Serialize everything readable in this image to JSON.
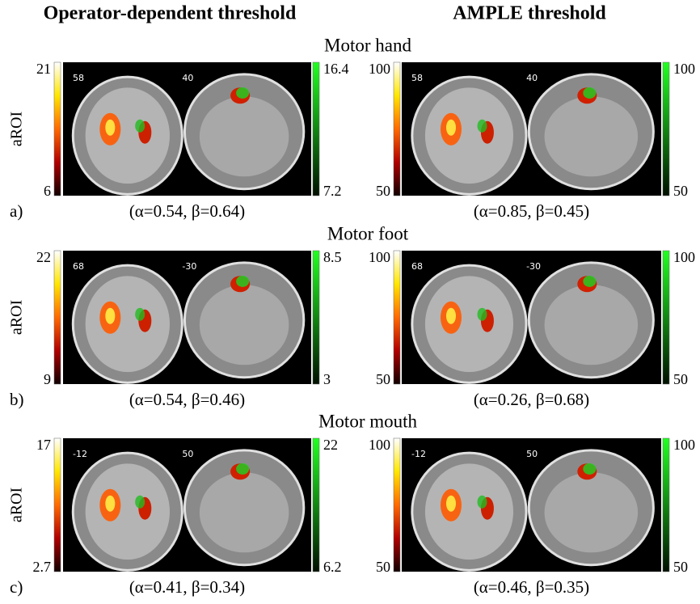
{
  "headers": [
    "Operator-dependent threshold",
    "AMPLE threshold"
  ],
  "rows": [
    {
      "title": "Motor hand",
      "letter": "a)",
      "ylabel": "aROI",
      "panels": [
        {
          "cbar_left": [
            "21",
            "6"
          ],
          "slices": [
            "58",
            "40"
          ],
          "cbar_right": [
            "16.4",
            "7.2"
          ],
          "caption": "(α=0.54, β=0.64)"
        },
        {
          "cbar_left": [
            "100",
            "50"
          ],
          "slices": [
            "58",
            "40"
          ],
          "cbar_right": [
            "100",
            "50"
          ],
          "caption": "(α=0.85, β=0.45)"
        }
      ]
    },
    {
      "title": "Motor foot",
      "letter": "b)",
      "ylabel": "aROI",
      "panels": [
        {
          "cbar_left": [
            "22",
            "9"
          ],
          "slices": [
            "68",
            "-30"
          ],
          "cbar_right": [
            "8.5",
            "3"
          ],
          "caption": "(α=0.54, β=0.46)"
        },
        {
          "cbar_left": [
            "100",
            "50"
          ],
          "slices": [
            "68",
            "-30"
          ],
          "cbar_right": [
            "100",
            "50"
          ],
          "caption": "(α=0.26, β=0.68)"
        }
      ]
    },
    {
      "title": "Motor mouth",
      "letter": "c)",
      "ylabel": "aROI",
      "panels": [
        {
          "cbar_left": [
            "17",
            "2.7"
          ],
          "slices": [
            "-12",
            "50"
          ],
          "cbar_right": [
            "22",
            "6.2"
          ],
          "caption": "(α=0.41, β=0.34)"
        },
        {
          "cbar_left": [
            "100",
            "50"
          ],
          "slices": [
            "-12",
            "50"
          ],
          "cbar_right": [
            "100",
            "50"
          ],
          "caption": "(α=0.46, β=0.35)"
        }
      ]
    }
  ]
}
